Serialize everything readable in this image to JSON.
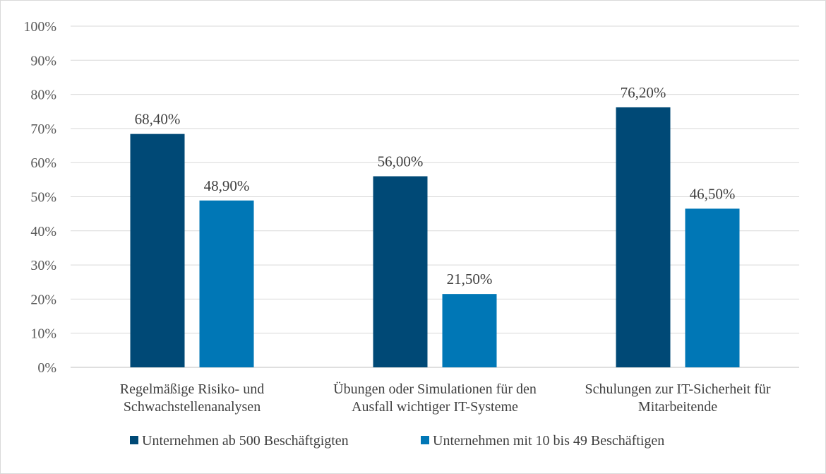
{
  "chart_data": {
    "type": "bar",
    "title": "",
    "xlabel": "",
    "ylabel": "",
    "categories": [
      [
        "Regelmäßige Risiko- und",
        "Schwachstellenanalysen"
      ],
      [
        "Übungen oder Simulationen für den",
        "Ausfall wichtiger IT-Systeme"
      ],
      [
        "Schulungen zur IT-Sicherheit für",
        "Mitarbeitende"
      ]
    ],
    "series": [
      {
        "name": "Unternehmen ab 500 Beschäftgigten",
        "color": "#004976",
        "values": [
          68.4,
          56.0,
          76.2
        ],
        "labels": [
          "68,40%",
          "56,00%",
          "76,20%"
        ]
      },
      {
        "name": "Unternehmen mit 10 bis 49 Beschäftigen",
        "color": "#0077b6",
        "values": [
          48.9,
          21.5,
          46.5
        ],
        "labels": [
          "48,90%",
          "21,50%",
          "46,50%"
        ]
      }
    ],
    "ylim": [
      0,
      100
    ],
    "yticks": [
      0,
      10,
      20,
      30,
      40,
      50,
      60,
      70,
      80,
      90,
      100
    ],
    "ytick_labels": [
      "0%",
      "10%",
      "20%",
      "30%",
      "40%",
      "50%",
      "60%",
      "70%",
      "80%",
      "90%",
      "100%"
    ],
    "grid": true,
    "legend_position": "bottom"
  }
}
